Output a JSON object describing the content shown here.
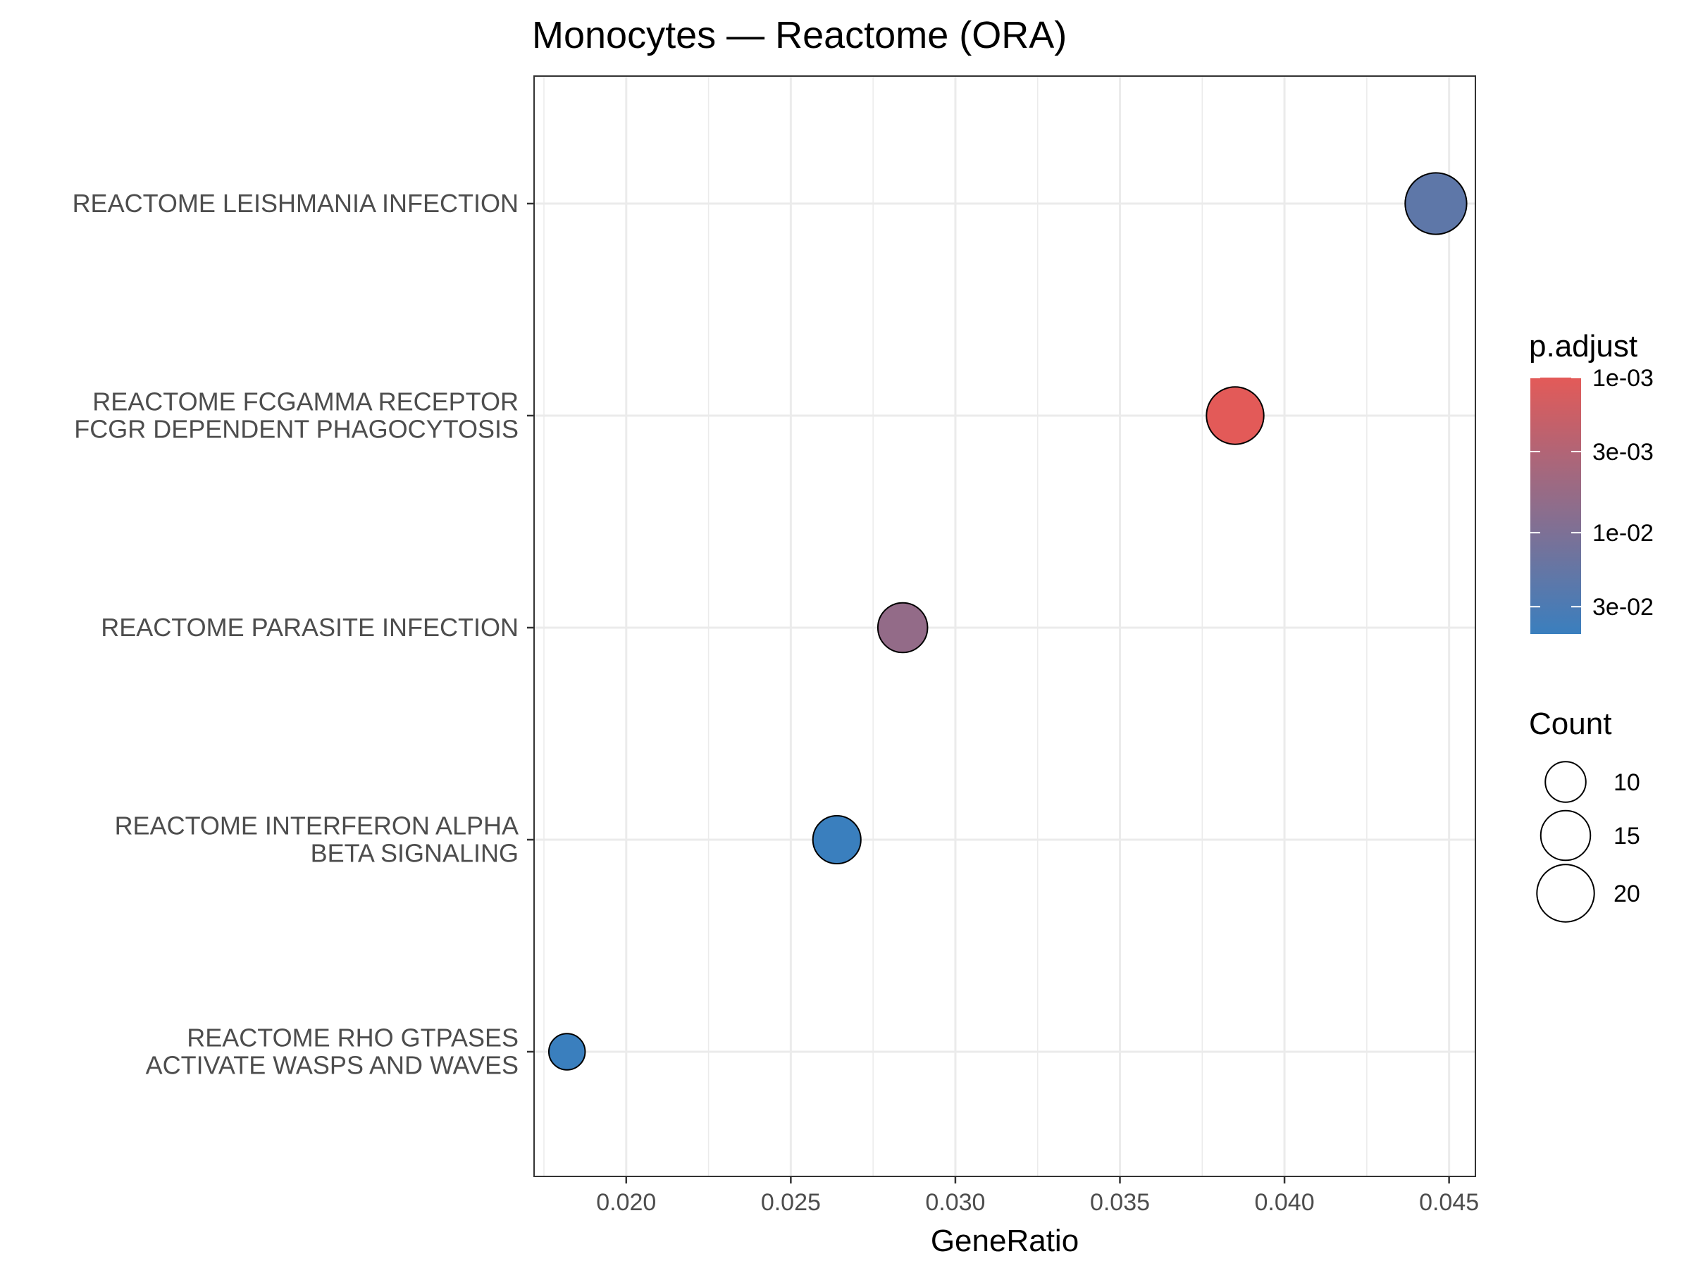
{
  "chart_data": {
    "type": "scatter",
    "title": "Monocytes — Reactome (ORA)",
    "xlabel": "GeneRatio",
    "ylabel": "",
    "xlim": [
      0.0172,
      0.0458
    ],
    "xticks": [
      0.02,
      0.025,
      0.03,
      0.035,
      0.04,
      0.045
    ],
    "xtick_labels": [
      "0.020",
      "0.025",
      "0.030",
      "0.035",
      "0.040",
      "0.045"
    ],
    "grid": true,
    "categories": [
      {
        "lines": [
          "REACTOME LEISHMANIA INFECTION"
        ]
      },
      {
        "lines": [
          "REACTOME FCGAMMA RECEPTOR",
          "FCGR DEPENDENT PHAGOCYTOSIS"
        ]
      },
      {
        "lines": [
          "REACTOME PARASITE INFECTION"
        ]
      },
      {
        "lines": [
          "REACTOME INTERFERON ALPHA",
          "BETA SIGNALING"
        ]
      },
      {
        "lines": [
          "REACTOME RHO GTPASES",
          "ACTIVATE WASPS AND WAVES"
        ]
      }
    ],
    "points": [
      {
        "category_index": 0,
        "gene_ratio": 0.0446,
        "count": 23,
        "p_adjust": 0.02
      },
      {
        "category_index": 1,
        "gene_ratio": 0.0385,
        "count": 20,
        "p_adjust": 0.001
      },
      {
        "category_index": 2,
        "gene_ratio": 0.0284,
        "count": 15,
        "p_adjust": 0.006
      },
      {
        "category_index": 3,
        "gene_ratio": 0.0264,
        "count": 14,
        "p_adjust": 0.045
      },
      {
        "category_index": 4,
        "gene_ratio": 0.0182,
        "count": 8,
        "p_adjust": 0.045
      }
    ],
    "color_scale": {
      "low_color": "#E35A58",
      "high_color": "#3A7FBE",
      "log_min": 0.001,
      "log_max": 0.045
    },
    "legend": {
      "placement": "right",
      "color_title": "p.adjust",
      "color_breaks": [
        {
          "value": 0.001,
          "label": "1e-03"
        },
        {
          "value": 0.003,
          "label": "3e-03"
        },
        {
          "value": 0.01,
          "label": "1e-02"
        },
        {
          "value": 0.03,
          "label": "3e-02"
        }
      ],
      "size_title": "Count",
      "size_breaks": [
        {
          "value": 10,
          "label": "10"
        },
        {
          "value": 15,
          "label": "15"
        },
        {
          "value": 20,
          "label": "20"
        }
      ]
    }
  }
}
